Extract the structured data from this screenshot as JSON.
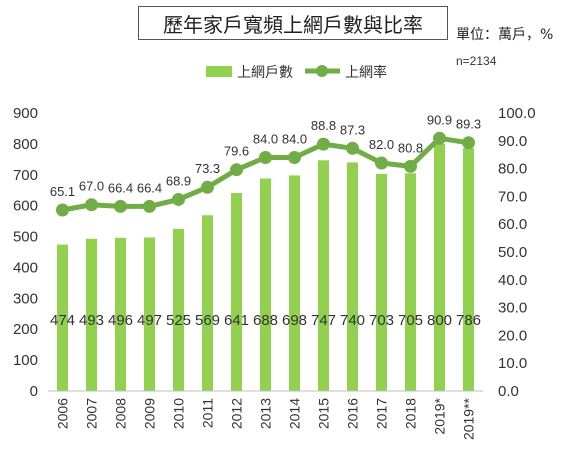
{
  "title": "歷年家戶寬頻上網戶數與比率",
  "unit": "單位：萬戶，%",
  "sample": "n=2134",
  "colors": {
    "bar": "#92d050",
    "line": "#70ad47",
    "text": "#333333"
  },
  "chart_data": {
    "type": "bar+line",
    "categories": [
      "2006",
      "2007",
      "2008",
      "2009",
      "2010",
      "2011",
      "2012",
      "2013",
      "2014",
      "2015",
      "2016",
      "2017",
      "2018",
      "2019*",
      "2019**"
    ],
    "series": [
      {
        "name": "上網戶數",
        "type": "bar",
        "axis": "left",
        "values": [
          474,
          493,
          496,
          497,
          525,
          569,
          641,
          688,
          698,
          747,
          740,
          703,
          705,
          800,
          786
        ]
      },
      {
        "name": "上網率",
        "type": "line",
        "axis": "right",
        "values": [
          65.1,
          67.0,
          66.4,
          66.4,
          68.9,
          73.3,
          79.6,
          84.0,
          84.0,
          88.8,
          87.3,
          82.0,
          80.8,
          90.9,
          89.3
        ]
      }
    ],
    "y_left": {
      "min": 0,
      "max": 900,
      "step": 100,
      "ticks": [
        "0",
        "100",
        "200",
        "300",
        "400",
        "500",
        "600",
        "700",
        "800",
        "900"
      ]
    },
    "y_right": {
      "min": 0,
      "max": 100,
      "step": 10,
      "ticks": [
        "0.0",
        "10.0",
        "20.0",
        "30.0",
        "40.0",
        "50.0",
        "60.0",
        "70.0",
        "80.0",
        "90.0",
        "100.0"
      ]
    },
    "bar_labels": [
      "474",
      "493",
      "496",
      "497",
      "525",
      "569",
      "641",
      "688",
      "698",
      "747",
      "740",
      "703",
      "705",
      "800",
      "786"
    ],
    "line_labels": [
      "65.1",
      "67.0",
      "66.4",
      "66.4",
      "68.9",
      "73.3",
      "79.6",
      "84.0",
      "84.0",
      "88.8",
      "87.3",
      "82.0",
      "80.8",
      "90.9",
      "89.3"
    ],
    "legend": {
      "position": "top",
      "labels": [
        "上網戶數",
        "上網率"
      ]
    },
    "grid": false
  }
}
